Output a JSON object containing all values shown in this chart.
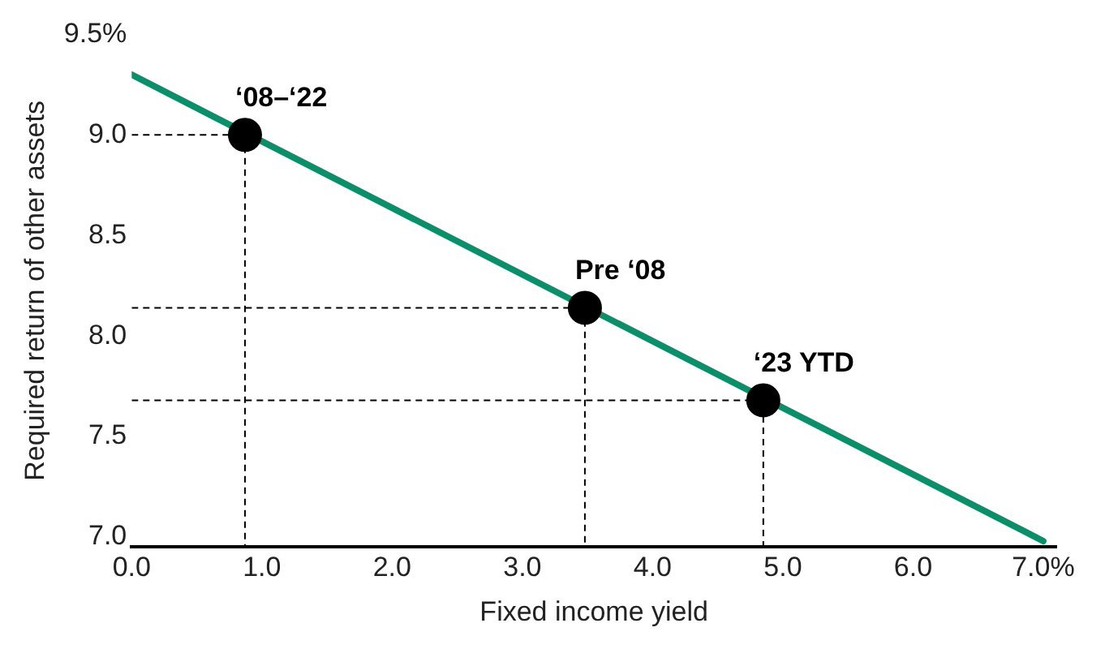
{
  "chart_data": {
    "type": "line",
    "xlabel": "Fixed income yield",
    "ylabel": "Required return of other assets",
    "xlim": [
      0,
      7.1
    ],
    "ylim": [
      6.95,
      9.5
    ],
    "xticks": [
      {
        "value": 0,
        "label": "0.0"
      },
      {
        "value": 1,
        "label": "1.0"
      },
      {
        "value": 2,
        "label": "2.0"
      },
      {
        "value": 3,
        "label": "3.0"
      },
      {
        "value": 4,
        "label": "4.0"
      },
      {
        "value": 5,
        "label": "5.0"
      },
      {
        "value": 6,
        "label": "6.0"
      },
      {
        "value": 7,
        "label": "7.0%"
      }
    ],
    "yticks": [
      {
        "value": 7,
        "label": "7.0"
      },
      {
        "value": 7.5,
        "label": "7.5"
      },
      {
        "value": 8,
        "label": "8.0"
      },
      {
        "value": 8.5,
        "label": "8.5"
      },
      {
        "value": 9,
        "label": "9.0"
      },
      {
        "value": 9.5,
        "label": "9.5%"
      }
    ],
    "grid": false,
    "legend": false,
    "series": [
      {
        "color": "#0a8f6a",
        "x": [
          0,
          7
        ],
        "values": [
          9.3,
          6.98
        ],
        "marker": "none"
      },
      {
        "color": "#000000",
        "x": [
          0,
          0.87,
          0.87
        ],
        "values": [
          9.0,
          9.0,
          6.95
        ],
        "marker": "none",
        "line_style": "dashed"
      },
      {
        "color": "#000000",
        "x": [
          0,
          3.48,
          3.48
        ],
        "values": [
          8.14,
          8.14,
          6.95
        ],
        "marker": "none",
        "line_style": "dashed"
      },
      {
        "color": "#000000",
        "x": [
          0,
          4.85,
          4.85
        ],
        "values": [
          7.68,
          7.68,
          6.95
        ],
        "marker": "none",
        "line_style": "dashed"
      },
      {
        "type": "scatter",
        "color": "#000000",
        "x": [
          0.87,
          3.48,
          4.85
        ],
        "values": [
          9.0,
          8.14,
          7.68
        ],
        "marker": "circle"
      }
    ],
    "annotations": [
      {
        "text": "‘08–‘22",
        "x": 0.87,
        "y": 9.0
      },
      {
        "text": "Pre ‘08",
        "x": 3.48,
        "y": 8.14
      },
      {
        "text": "‘23 YTD",
        "x": 4.85,
        "y": 7.68
      }
    ]
  }
}
